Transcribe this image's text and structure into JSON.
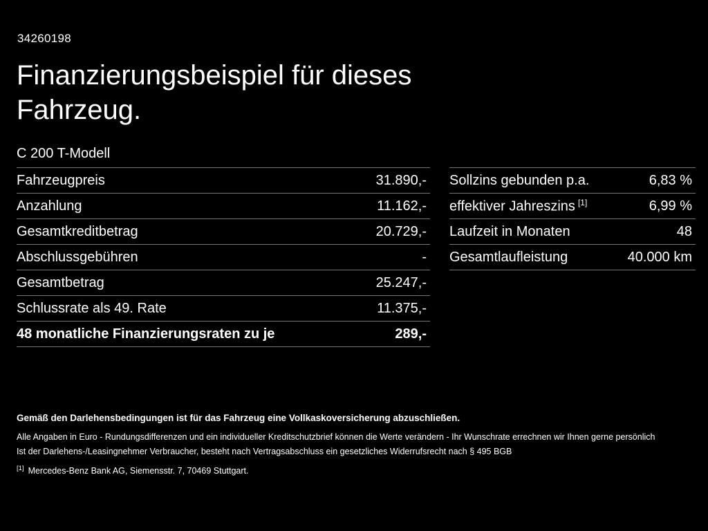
{
  "colors": {
    "background": "#000000",
    "text": "#ffffff",
    "divider": "#757575"
  },
  "header": {
    "id": "34260198",
    "title": "Finanzierungsbeispiel für dieses Fahrzeug.",
    "model": "C 200 T-Modell"
  },
  "left_table": {
    "rows": [
      {
        "label": "Fahrzeugpreis",
        "value": "31.890,-"
      },
      {
        "label": "Anzahlung",
        "value": "11.162,-"
      },
      {
        "label": "Gesamtkreditbetrag",
        "value": "20.729,-"
      },
      {
        "label": "Abschlussgebühren",
        "value": "-"
      },
      {
        "label": "Gesamtbetrag",
        "value": "25.247,-"
      },
      {
        "label": "Schlussrate als 49. Rate",
        "value": "11.375,-"
      },
      {
        "label": "48 monatliche Finanzierungsraten zu je",
        "value": "289,-"
      }
    ]
  },
  "right_table": {
    "rows": [
      {
        "label": "Sollzins gebunden p.a.",
        "value": "6,83 %"
      },
      {
        "label": "effektiver Jahreszins",
        "sup": "[1]",
        "value": "6,99 %"
      },
      {
        "label": "Laufzeit in Monaten",
        "value": "48"
      },
      {
        "label": "Gesamtlaufleistung",
        "value": "40.000 km"
      }
    ]
  },
  "footer": {
    "insurance_note": "Gemäß den Darlehensbedingungen ist für das Fahrzeug eine Vollkaskoversicherung abzuschließen.",
    "line1": "Alle Angaben in Euro - Rundungsdifferenzen und ein individueller Kreditschutzbrief können die Werte verändern - Ihr Wunschrate errechnen wir Ihnen gerne persönlich",
    "line2": "Ist der Darlehens-/Leasingnehmer Verbraucher, besteht nach Vertragsabschluss ein gesetzliches Widerrufsrecht nach § 495 BGB",
    "footnote_marker": "[1]",
    "footnote": "Mercedes-Benz Bank AG, Siemensstr. 7, 70469 Stuttgart."
  }
}
